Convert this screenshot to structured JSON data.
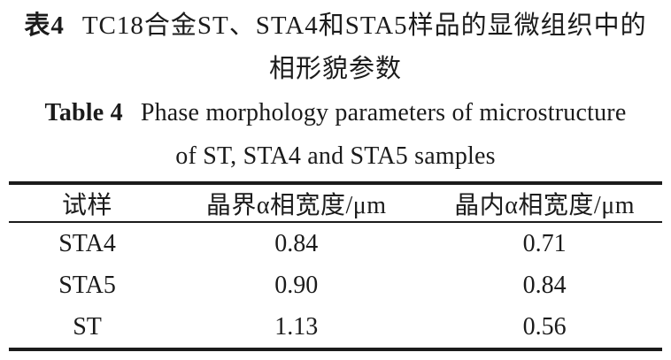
{
  "caption_cn": {
    "label": "表4",
    "line1": "TC18合金ST、STA4和STA5样品的显微组织中的",
    "line2": "相形貌参数"
  },
  "caption_en": {
    "label": "Table 4",
    "line1": "Phase morphology parameters of microstructure",
    "line2": "of ST, STA4 and STA5 samples"
  },
  "table": {
    "columns": [
      "试样",
      "晶界α相宽度/μm",
      "晶内α相宽度/μm"
    ],
    "rows": [
      {
        "sample": "STA4",
        "grain_boundary_alpha_width_um": "0.84",
        "intragranular_alpha_width_um": "0.71"
      },
      {
        "sample": "STA5",
        "grain_boundary_alpha_width_um": "0.90",
        "intragranular_alpha_width_um": "0.84"
      },
      {
        "sample": "ST",
        "grain_boundary_alpha_width_um": "1.13",
        "intragranular_alpha_width_um": "0.56"
      }
    ]
  },
  "colors": {
    "text": "#1b1b1b",
    "rule": "#1b1b1b",
    "background": "#ffffff"
  }
}
